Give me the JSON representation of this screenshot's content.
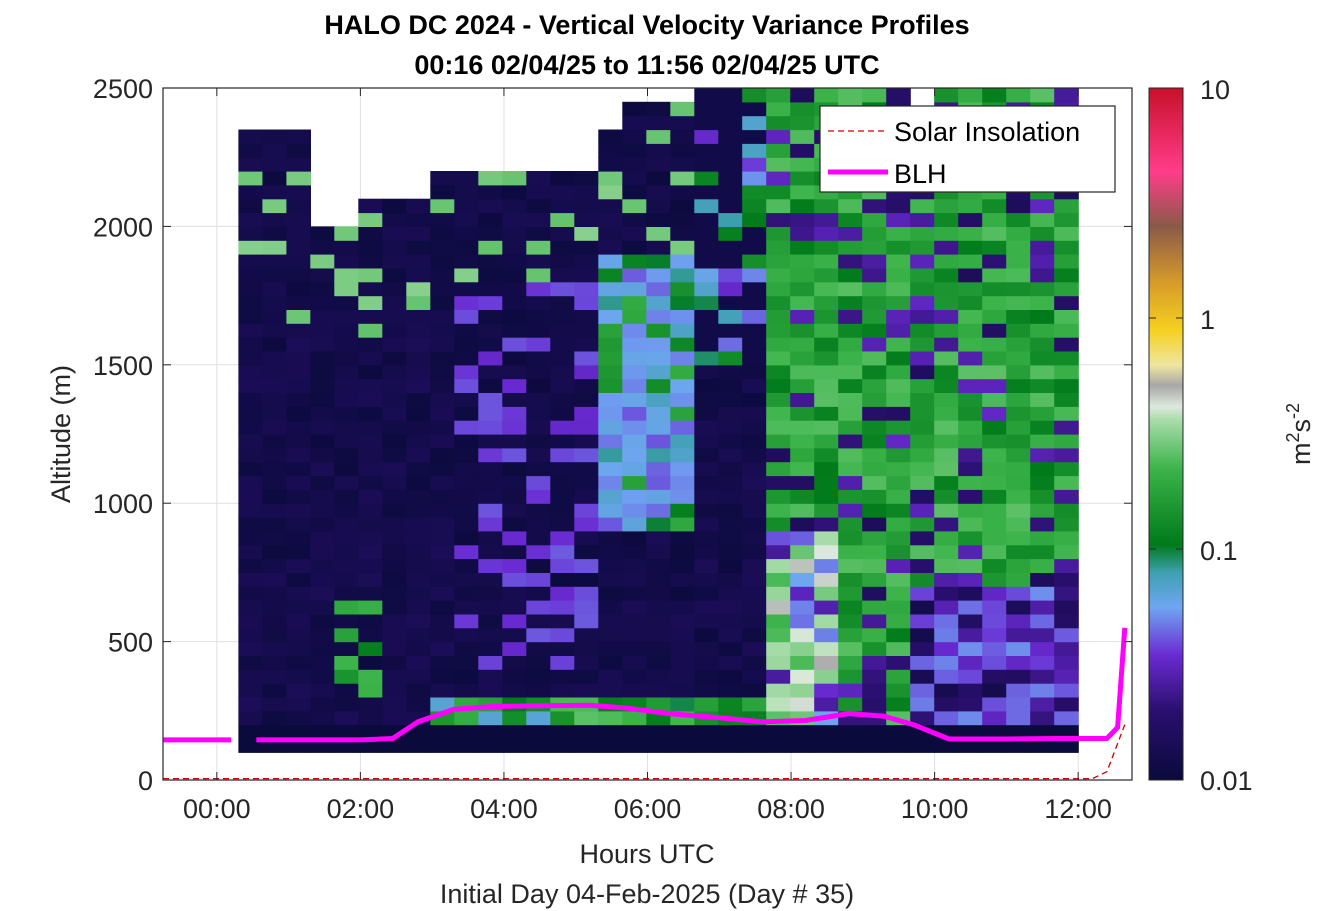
{
  "chart_data": {
    "type": "heatmap",
    "title": "HALO DC 2024 - Vertical Velocity Variance Profiles",
    "subtitle": "00:16 02/04/25 to 11:56 02/04/25  UTC",
    "xlabel": "Hours UTC",
    "x_sublabel": "Initial Day 04-Feb-2025 (Day # 35)",
    "ylabel": "Altitude (m)",
    "colorbar_label_base": "m",
    "colorbar_label_sup1": "2",
    "colorbar_label_mid": "s",
    "colorbar_label_sup2": "-2",
    "colorbar_scale": "log",
    "colorbar_range": [
      0.01,
      10
    ],
    "colorbar_ticks": [
      "10",
      "1",
      "0.1",
      "0.01"
    ],
    "xlim_hours": [
      -0.75,
      12.75
    ],
    "ylim": [
      0,
      2500
    ],
    "xticks": [
      "00:00",
      "02:00",
      "04:00",
      "06:00",
      "08:00",
      "10:00",
      "12:00"
    ],
    "yticks": [
      "0",
      "500",
      "1000",
      "1500",
      "2000",
      "2500"
    ],
    "grid": true,
    "legend_position": "top-right",
    "legend": [
      {
        "label": "Solar Insolation",
        "color": "#cc0000",
        "style": "dashed"
      },
      {
        "label": "BLH",
        "color": "#ff00ff",
        "style": "solid"
      }
    ],
    "series": [
      {
        "name": "BLH",
        "color": "#ff00ff",
        "points": [
          [
            -0.75,
            145
          ],
          [
            0.2,
            145
          ],
          [
            null,
            null
          ],
          [
            0.55,
            145
          ],
          [
            2.0,
            145
          ],
          [
            2.45,
            150
          ],
          [
            2.8,
            210
          ],
          [
            3.3,
            255
          ],
          [
            3.8,
            265
          ],
          [
            4.5,
            268
          ],
          [
            5.2,
            270
          ],
          [
            5.7,
            260
          ],
          [
            6.3,
            240
          ],
          [
            7.0,
            225
          ],
          [
            7.6,
            210
          ],
          [
            8.2,
            215
          ],
          [
            8.8,
            240
          ],
          [
            9.3,
            230
          ],
          [
            9.7,
            200
          ],
          [
            10.2,
            148
          ],
          [
            11.0,
            148
          ],
          [
            11.7,
            150
          ],
          [
            12.4,
            150
          ],
          [
            12.55,
            190
          ],
          [
            12.65,
            550
          ]
        ]
      },
      {
        "name": "Solar Insolation",
        "color": "#cc0000",
        "points": [
          [
            -0.75,
            5
          ],
          [
            12.2,
            5
          ],
          [
            12.4,
            30
          ],
          [
            12.65,
            200
          ]
        ]
      }
    ],
    "heatmap_extent": {
      "hours": [
        0.3,
        12.0
      ],
      "altitude": [
        100,
        2500
      ]
    },
    "heatmap_note": "Gridded vertical-velocity variance, mostly 0.01-0.03 (dark navy/purple) before 07:00 and 0.05-0.3 (green) in elevated layers after 07:30 and near the surface from 02:50 to 07:30."
  }
}
